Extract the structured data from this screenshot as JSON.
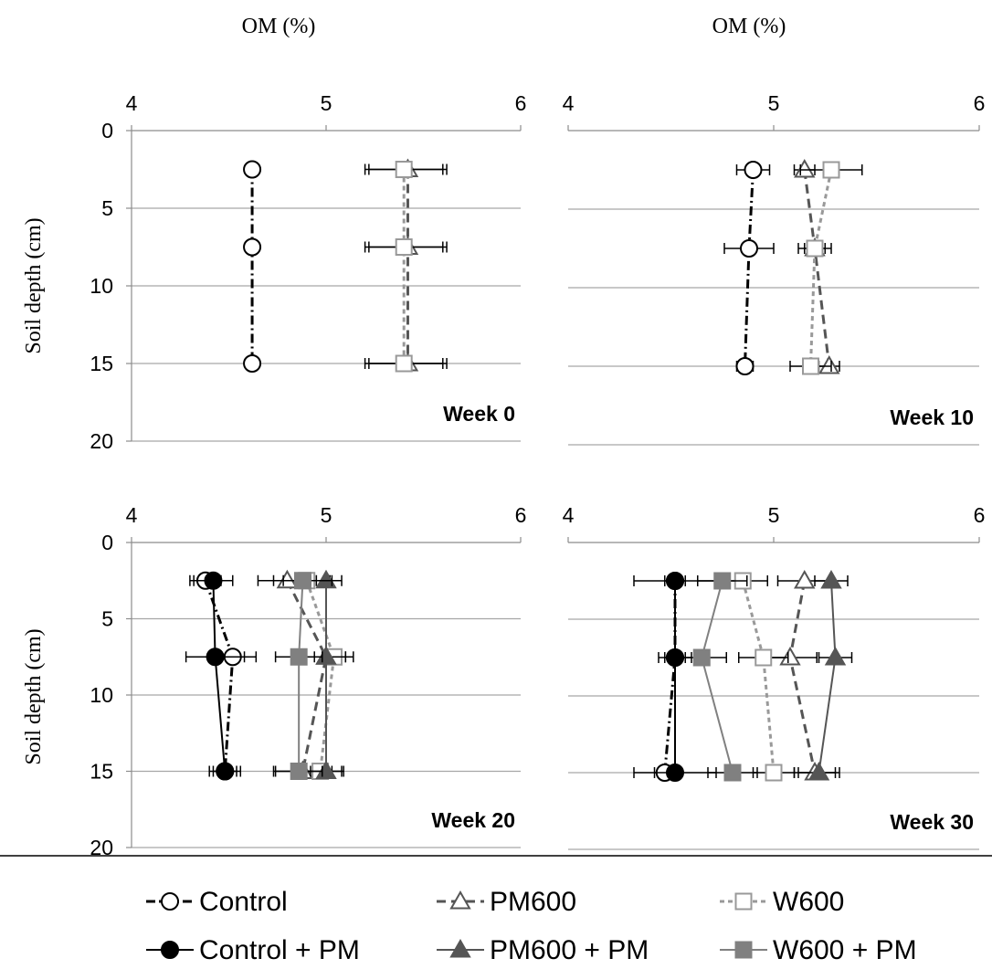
{
  "figure": {
    "xlabel_top": "OM (%)",
    "ylabel": "Soil depth (cm)"
  },
  "colors": {
    "control": "#000000",
    "pm600": "#555555",
    "w600": "#999999",
    "control_pm": "#000000",
    "pm600_pm": "#555555",
    "w600_pm": "#808080",
    "grid": "#a6a6a6",
    "axis": "#8c8c8c"
  },
  "legend": {
    "placement": "bottom",
    "entries": [
      "Control",
      "PM600",
      "W600",
      "Control + PM",
      "PM600 + PM",
      "W600 + PM"
    ]
  },
  "chart_data": [
    {
      "type": "line",
      "title": "Week 0",
      "xlabel": "OM (%)",
      "ylabel": "Soil depth (cm)",
      "xlim": [
        4,
        6
      ],
      "ylim": [
        0,
        20
      ],
      "xticks": [
        4,
        5,
        6
      ],
      "yticks": [
        0,
        5,
        10,
        15,
        20
      ],
      "depths": [
        2.5,
        7.5,
        15
      ],
      "series": [
        {
          "name": "Control",
          "values": [
            4.62,
            4.62,
            4.62
          ],
          "err": [
            0.01,
            0.01,
            0.01
          ]
        },
        {
          "name": "PM600",
          "values": [
            5.42,
            5.42,
            5.42
          ],
          "err": [
            0.2,
            0.2,
            0.2
          ]
        },
        {
          "name": "W600",
          "values": [
            5.4,
            5.4,
            5.4
          ],
          "err": [
            0.2,
            0.2,
            0.2
          ]
        }
      ]
    },
    {
      "type": "line",
      "title": "Week 10",
      "xlabel": "",
      "ylabel": "",
      "xlim": [
        4,
        6
      ],
      "ylim": [
        0,
        20
      ],
      "xticks": [
        4,
        5,
        6
      ],
      "yticks": [
        0,
        5,
        10,
        15,
        20
      ],
      "depths": [
        2.5,
        7.5,
        15
      ],
      "series": [
        {
          "name": "Control",
          "values": [
            4.9,
            4.88,
            4.86
          ],
          "err": [
            0.08,
            0.12,
            0.04
          ]
        },
        {
          "name": "PM600",
          "values": [
            5.15,
            5.2,
            5.27
          ],
          "err": [
            0.05,
            0.08,
            0.05
          ]
        },
        {
          "name": "W600",
          "values": [
            5.28,
            5.2,
            5.18
          ],
          "err": [
            0.15,
            0.05,
            0.1
          ]
        }
      ]
    },
    {
      "type": "line",
      "title": "Week 20",
      "xlabel": "",
      "ylabel": "Soil depth (cm)",
      "xlim": [
        4,
        6
      ],
      "ylim": [
        0,
        20
      ],
      "xticks": [
        4,
        5,
        6
      ],
      "yticks": [
        0,
        5,
        10,
        15,
        20
      ],
      "depths": [
        2.5,
        7.5,
        15
      ],
      "series": [
        {
          "name": "Control",
          "values": [
            4.38,
            4.52,
            4.48
          ],
          "err": [
            0.08,
            0.12,
            0.06
          ]
        },
        {
          "name": "PM600",
          "values": [
            4.8,
            5.0,
            4.88
          ],
          "err": [
            0.15,
            0.1,
            0.15
          ]
        },
        {
          "name": "W600",
          "values": [
            4.9,
            5.04,
            4.97
          ],
          "err": [
            0.12,
            0.1,
            0.12
          ]
        },
        {
          "name": "Control + PM",
          "values": [
            4.42,
            4.43,
            4.48
          ],
          "err": [
            0.1,
            0.15,
            0.08
          ]
        },
        {
          "name": "PM600 + PM",
          "values": [
            5.0,
            5.0,
            5.0
          ],
          "err": [
            0.08,
            0.1,
            0.08
          ]
        },
        {
          "name": "W600 + PM",
          "values": [
            4.88,
            4.86,
            4.86
          ],
          "err": [
            0.15,
            0.12,
            0.12
          ]
        }
      ]
    },
    {
      "type": "line",
      "title": "Week 30",
      "xlabel": "",
      "ylabel": "",
      "xlim": [
        4,
        6
      ],
      "ylim": [
        0,
        20
      ],
      "xticks": [
        4,
        5,
        6
      ],
      "yticks": [
        0,
        5,
        10,
        15,
        20
      ],
      "depths": [
        2.5,
        7.5,
        15
      ],
      "series": [
        {
          "name": "Control",
          "values": [
            4.52,
            4.52,
            4.47
          ],
          "err": [
            0.05,
            0.05,
            0.05
          ]
        },
        {
          "name": "PM600",
          "values": [
            5.15,
            5.08,
            5.2
          ],
          "err": [
            0.13,
            0.13,
            0.1
          ]
        },
        {
          "name": "W600",
          "values": [
            4.85,
            4.95,
            5.0
          ],
          "err": [
            0.12,
            0.12,
            0.1
          ]
        },
        {
          "name": "Control + PM",
          "values": [
            4.52,
            4.52,
            4.52
          ],
          "err": [
            0.2,
            0.08,
            0.2
          ]
        },
        {
          "name": "PM600 + PM",
          "values": [
            5.28,
            5.3,
            5.22
          ],
          "err": [
            0.08,
            0.08,
            0.1
          ]
        },
        {
          "name": "W600 + PM",
          "values": [
            4.75,
            4.65,
            4.8
          ],
          "err": [
            0.12,
            0.12,
            0.12
          ]
        }
      ]
    }
  ]
}
